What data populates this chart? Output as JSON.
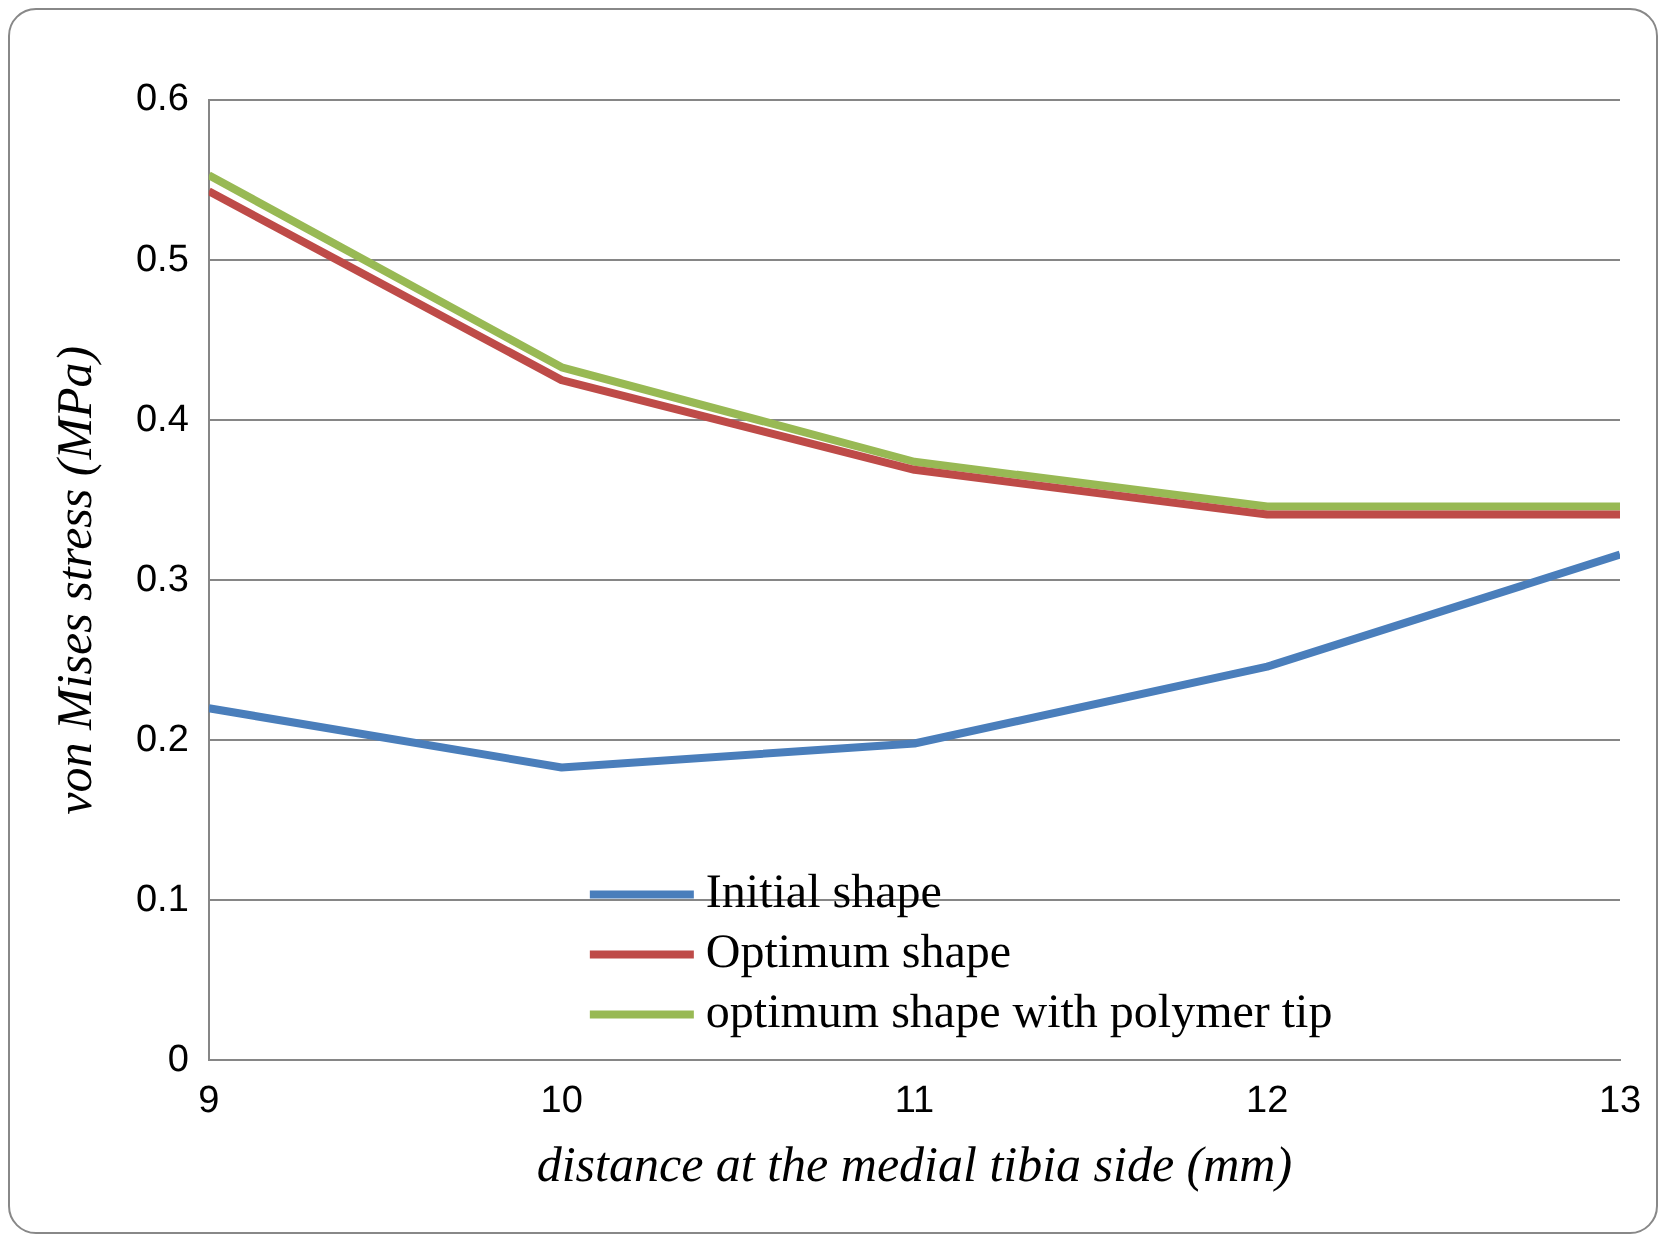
{
  "chart_data": {
    "type": "line",
    "xlabel": "distance at the medial tibia side (mm)",
    "ylabel": "von Mises stress (MPa)",
    "x": [
      9,
      10,
      11,
      12,
      13
    ],
    "series": [
      {
        "name": "Initial shape",
        "color": "#4a7ebb",
        "values": [
          0.22,
          0.183,
          0.198,
          0.246,
          0.316
        ]
      },
      {
        "name": "Optimum shape",
        "color": "#be4b48",
        "values": [
          0.543,
          0.425,
          0.369,
          0.341,
          0.341
        ]
      },
      {
        "name": "optimum shape with polymer tip",
        "color": "#98b954",
        "values": [
          0.553,
          0.433,
          0.374,
          0.346,
          0.346
        ]
      }
    ],
    "xlim": [
      9,
      13
    ],
    "xticks": [
      9,
      10,
      11,
      12,
      13
    ],
    "ylim": [
      0,
      0.6
    ],
    "yticks": [
      0,
      0.1,
      0.2,
      0.3,
      0.4,
      0.5,
      0.6
    ],
    "grid": "y",
    "legend": "bottom",
    "marker": "none",
    "line_style": "solid"
  }
}
